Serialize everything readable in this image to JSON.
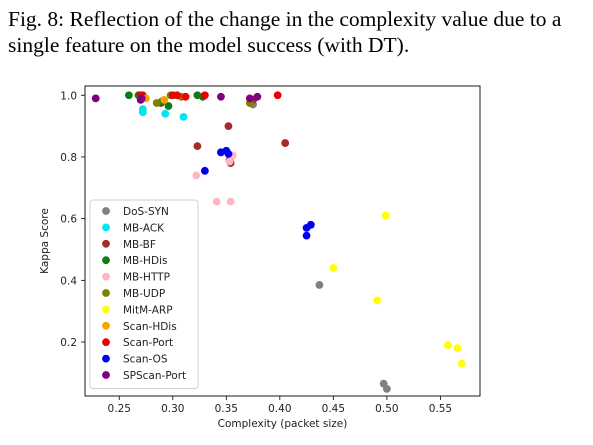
{
  "caption": "Fig. 8: Reflection of the change in the complexity value due to a single feature on the model success (with DT).",
  "chart_data": {
    "type": "scatter",
    "xlabel": "Complexity (packet size)",
    "ylabel": "Kappa Score",
    "xlim": [
      0.218,
      0.587
    ],
    "ylim": [
      0.025,
      1.03
    ],
    "xticks": [
      0.25,
      0.3,
      0.35,
      0.4,
      0.45,
      0.5,
      0.55
    ],
    "xtick_labels": [
      "0.25",
      "0.30",
      "0.35",
      "0.40",
      "0.45",
      "0.50",
      "0.55"
    ],
    "yticks": [
      0.2,
      0.4,
      0.6,
      0.8,
      1.0
    ],
    "ytick_labels": [
      "0.2",
      "0.4",
      "0.6",
      "0.8",
      "1.0"
    ],
    "grid": false,
    "legend_position": "lower-left",
    "series": [
      {
        "name": "DoS-SYN",
        "color": "#808080",
        "points": [
          [
            0.375,
            0.97
          ],
          [
            0.437,
            0.385
          ],
          [
            0.497,
            0.065
          ],
          [
            0.5,
            0.048
          ]
        ]
      },
      {
        "name": "MB-ACK",
        "color": "#00e5ee",
        "points": [
          [
            0.272,
            0.955
          ],
          [
            0.272,
            0.945
          ],
          [
            0.293,
            0.94
          ],
          [
            0.31,
            0.93
          ]
        ]
      },
      {
        "name": "MB-BF",
        "color": "#a52a2a",
        "points": [
          [
            0.272,
            1.0
          ],
          [
            0.289,
            0.975
          ],
          [
            0.323,
            0.835
          ],
          [
            0.352,
            0.9
          ],
          [
            0.353,
            0.79
          ],
          [
            0.354,
            0.78
          ],
          [
            0.405,
            0.845
          ],
          [
            0.375,
            0.985
          ]
        ]
      },
      {
        "name": "MB-HDis",
        "color": "#117a11",
        "points": [
          [
            0.259,
            1.0
          ],
          [
            0.268,
            1.0
          ],
          [
            0.29,
            0.98
          ],
          [
            0.296,
            0.965
          ],
          [
            0.323,
            1.0
          ],
          [
            0.328,
            0.995
          ]
        ]
      },
      {
        "name": "MB-HTTP",
        "color": "#ffb6c1",
        "points": [
          [
            0.322,
            0.74
          ],
          [
            0.341,
            0.655
          ],
          [
            0.354,
            0.655
          ],
          [
            0.353,
            0.785
          ],
          [
            0.356,
            0.805
          ]
        ]
      },
      {
        "name": "MB-UDP",
        "color": "#808000",
        "points": [
          [
            0.27,
            0.995
          ],
          [
            0.285,
            0.975
          ],
          [
            0.298,
            1.0
          ],
          [
            0.308,
            0.995
          ],
          [
            0.372,
            0.975
          ]
        ]
      },
      {
        "name": "MitM-ARP",
        "color": "#ffff00",
        "points": [
          [
            0.499,
            0.61
          ],
          [
            0.45,
            0.44
          ],
          [
            0.491,
            0.335
          ],
          [
            0.557,
            0.19
          ],
          [
            0.566,
            0.18
          ],
          [
            0.57,
            0.13
          ]
        ]
      },
      {
        "name": "Scan-HDis",
        "color": "#ff9f00",
        "points": [
          [
            0.275,
            0.99
          ],
          [
            0.292,
            0.985
          ]
        ]
      },
      {
        "name": "Scan-Port",
        "color": "#ee0000",
        "points": [
          [
            0.27,
            1.0
          ],
          [
            0.3,
            1.0
          ],
          [
            0.304,
            1.0
          ],
          [
            0.312,
            0.995
          ],
          [
            0.33,
            1.0
          ],
          [
            0.398,
            1.0
          ]
        ]
      },
      {
        "name": "Scan-OS",
        "color": "#0000ee",
        "points": [
          [
            0.345,
            0.815
          ],
          [
            0.35,
            0.82
          ],
          [
            0.352,
            0.81
          ],
          [
            0.33,
            0.755
          ],
          [
            0.425,
            0.57
          ],
          [
            0.425,
            0.545
          ],
          [
            0.429,
            0.58
          ]
        ]
      },
      {
        "name": "SPScan-Port",
        "color": "#800080",
        "points": [
          [
            0.228,
            0.99
          ],
          [
            0.271,
            0.99
          ],
          [
            0.345,
            0.995
          ],
          [
            0.372,
            0.99
          ],
          [
            0.379,
            0.995
          ],
          [
            0.27,
            0.985
          ]
        ]
      }
    ]
  }
}
